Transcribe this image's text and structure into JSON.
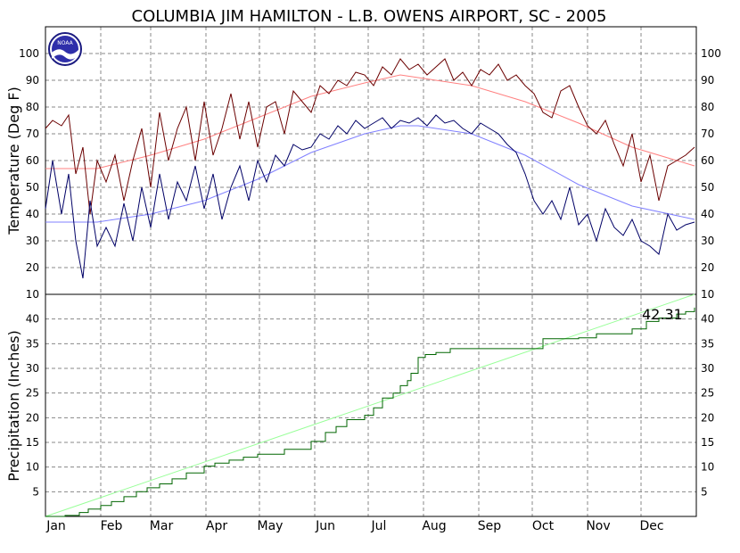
{
  "chart_data": {
    "type": "line",
    "title": "COLUMBIA JIM HAMILTON - L.B. OWENS AIRPORT, SC - 2005",
    "months": [
      "Jan",
      "Feb",
      "Mar",
      "Apr",
      "May",
      "Jun",
      "Jul",
      "Aug",
      "Sep",
      "Oct",
      "Nov",
      "Dec"
    ],
    "colors": {
      "daily_high": "#6b0000",
      "normal_high": "#ff8080",
      "daily_low": "#000066",
      "normal_low": "#8080ff",
      "precip": "#006600",
      "normal_precip": "#99ff99",
      "grid": "#888888"
    },
    "temperature": {
      "ylabel": "Temperature (Deg F)",
      "ylim": [
        10,
        110
      ],
      "ticks": [
        10,
        20,
        30,
        40,
        50,
        60,
        70,
        80,
        90,
        100
      ],
      "daily_high": {
        "days": [
          1,
          5,
          10,
          14,
          18,
          22,
          26,
          30,
          35,
          40,
          45,
          50,
          55,
          60,
          65,
          70,
          75,
          80,
          85,
          90,
          95,
          100,
          105,
          110,
          115,
          120,
          125,
          130,
          135,
          140,
          145,
          150,
          155,
          160,
          165,
          170,
          175,
          180,
          185,
          190,
          195,
          200,
          205,
          210,
          215,
          220,
          225,
          230,
          235,
          240,
          245,
          250,
          255,
          260,
          265,
          270,
          275,
          280,
          285,
          290,
          295,
          300,
          305,
          310,
          315,
          320,
          325,
          330,
          335,
          340,
          345,
          350,
          355,
          360,
          365
        ],
        "values": [
          72,
          75,
          73,
          77,
          55,
          65,
          40,
          60,
          52,
          62,
          45,
          60,
          72,
          50,
          78,
          60,
          72,
          80,
          60,
          82,
          62,
          72,
          85,
          68,
          82,
          65,
          80,
          82,
          70,
          86,
          82,
          78,
          88,
          85,
          90,
          88,
          93,
          92,
          88,
          95,
          92,
          98,
          94,
          96,
          92,
          95,
          98,
          90,
          93,
          88,
          94,
          92,
          96,
          90,
          92,
          88,
          85,
          78,
          76,
          86,
          88,
          80,
          73,
          70,
          75,
          66,
          58,
          70,
          52,
          62,
          45,
          58,
          60,
          62,
          65
        ],
        "comment": "approximate read-off of the jagged daily high trace"
      },
      "normal_high": {
        "days": [
          1,
          30,
          60,
          90,
          120,
          150,
          180,
          200,
          210,
          240,
          270,
          300,
          330,
          365
        ],
        "values": [
          57,
          57,
          62,
          68,
          76,
          84,
          89,
          92,
          91,
          88,
          82,
          74,
          65,
          58
        ]
      },
      "daily_low": {
        "days": [
          1,
          5,
          10,
          14,
          18,
          22,
          26,
          30,
          35,
          40,
          45,
          50,
          55,
          60,
          65,
          70,
          75,
          80,
          85,
          90,
          95,
          100,
          105,
          110,
          115,
          120,
          125,
          130,
          135,
          140,
          145,
          150,
          155,
          160,
          165,
          170,
          175,
          180,
          185,
          190,
          195,
          200,
          205,
          210,
          215,
          220,
          225,
          230,
          235,
          240,
          245,
          250,
          255,
          260,
          265,
          270,
          275,
          280,
          285,
          290,
          295,
          300,
          305,
          310,
          315,
          320,
          325,
          330,
          335,
          340,
          345,
          350,
          355,
          360,
          365
        ],
        "values": [
          42,
          60,
          40,
          55,
          30,
          16,
          45,
          28,
          35,
          28,
          44,
          30,
          50,
          35,
          55,
          38,
          52,
          45,
          58,
          42,
          55,
          38,
          50,
          58,
          45,
          60,
          52,
          62,
          58,
          66,
          64,
          65,
          70,
          68,
          73,
          70,
          75,
          72,
          74,
          76,
          72,
          75,
          74,
          76,
          73,
          77,
          74,
          75,
          72,
          70,
          74,
          72,
          70,
          66,
          63,
          55,
          45,
          40,
          45,
          38,
          50,
          36,
          40,
          30,
          42,
          35,
          32,
          38,
          30,
          28,
          25,
          40,
          34,
          36,
          37
        ],
        "comment": "approximate read-off of the jagged daily low trace"
      },
      "normal_low": {
        "days": [
          1,
          30,
          60,
          90,
          120,
          150,
          180,
          200,
          210,
          240,
          270,
          300,
          330,
          365
        ],
        "values": [
          37,
          37,
          40,
          45,
          53,
          63,
          70,
          73,
          73,
          70,
          62,
          51,
          43,
          38
        ]
      }
    },
    "precipitation": {
      "ylabel": "Precipitation (Inches)",
      "ylim": [
        0,
        45
      ],
      "ticks": [
        5,
        10,
        15,
        20,
        25,
        30,
        35,
        40
      ],
      "total_label": "42.31",
      "cumulative": {
        "days": [
          1,
          8,
          12,
          20,
          25,
          32,
          38,
          45,
          52,
          58,
          65,
          72,
          80,
          90,
          96,
          104,
          112,
          120,
          135,
          150,
          158,
          164,
          170,
          180,
          185,
          190,
          196,
          200,
          204,
          206,
          210,
          214,
          220,
          228,
          236,
          250,
          265,
          275,
          280,
          290,
          300,
          310,
          320,
          330,
          338,
          345,
          355,
          360,
          365
        ],
        "values": [
          0,
          0,
          0.2,
          0.8,
          1.5,
          2.2,
          3.0,
          4.0,
          5.0,
          5.8,
          6.6,
          7.6,
          8.8,
          10.2,
          10.8,
          11.4,
          12.0,
          12.6,
          13.6,
          15.2,
          17.0,
          18.2,
          19.6,
          20.5,
          22.0,
          24.0,
          25.0,
          26.5,
          27.5,
          29.0,
          32.2,
          32.8,
          33.2,
          34.0,
          34.0,
          34.0,
          34.0,
          34.0,
          36.0,
          36.0,
          36.2,
          37.0,
          37.0,
          38.0,
          39.5,
          40.2,
          41.0,
          41.5,
          42.31
        ]
      },
      "normal_cumulative": {
        "days": [
          1,
          365
        ],
        "values": [
          0,
          45
        ]
      }
    }
  }
}
